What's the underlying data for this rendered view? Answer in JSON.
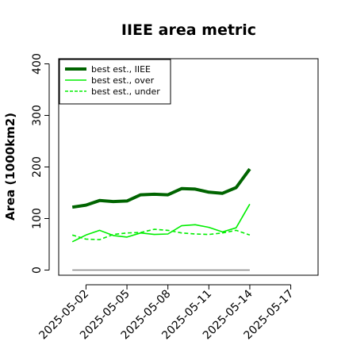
{
  "chart_data": {
    "type": "line",
    "title": "IIEE area metric",
    "xlabel": "",
    "ylabel": "Area (1000km2)",
    "x": [
      "2025-05-01",
      "2025-05-02",
      "2025-05-03",
      "2025-05-04",
      "2025-05-05",
      "2025-05-06",
      "2025-05-07",
      "2025-05-08",
      "2025-05-09",
      "2025-05-10",
      "2025-05-11",
      "2025-05-12",
      "2025-05-13",
      "2025-05-14"
    ],
    "xticks": [
      "2025-05-02",
      "2025-05-05",
      "2025-05-08",
      "2025-05-11",
      "2025-05-14",
      "2025-05-17"
    ],
    "xlim": [
      "2025-04-30",
      "2025-05-19"
    ],
    "ylim": [
      -10,
      410
    ],
    "yticks": [
      0,
      100,
      200,
      300,
      400
    ],
    "grid": false,
    "legend_position": "top-left",
    "series": [
      {
        "name": "best est., IIEE",
        "style": "solid-thick",
        "color": "#006400",
        "values": [
          122,
          126,
          135,
          133,
          134,
          146,
          147,
          146,
          158,
          157,
          151,
          149,
          160,
          196
        ]
      },
      {
        "name": "best est., over",
        "style": "solid",
        "color": "#00ee00",
        "values": [
          55,
          68,
          77,
          67,
          64,
          72,
          69,
          70,
          86,
          88,
          83,
          74,
          82,
          128
        ]
      },
      {
        "name": "best est., under",
        "style": "dashed",
        "color": "#00ee00",
        "values": [
          68,
          60,
          59,
          69,
          72,
          73,
          79,
          77,
          72,
          70,
          69,
          72,
          77,
          68
        ]
      },
      {
        "name": "",
        "style": "solid",
        "color": "#888888",
        "values": [
          0,
          0,
          0,
          0,
          0,
          0,
          0,
          0,
          0,
          0,
          0,
          0,
          0,
          0
        ]
      }
    ]
  }
}
